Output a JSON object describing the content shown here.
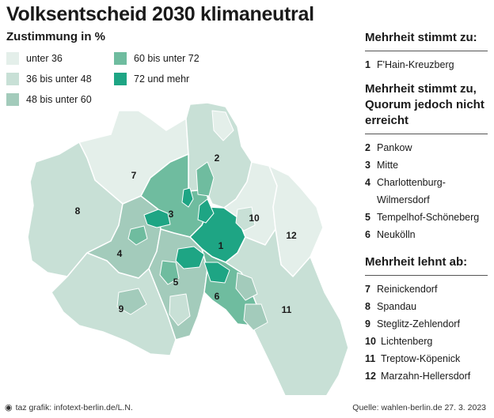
{
  "title": "Volksentscheid 2030 klimaneutral",
  "legend": {
    "title": "Zustimmung in %",
    "items": [
      {
        "label": "unter 36",
        "color": "#e4efea"
      },
      {
        "label": "36  bis unter 48",
        "color": "#c8e0d6"
      },
      {
        "label": "48  bis unter 60",
        "color": "#a3cbbb"
      },
      {
        "label": "60 bis unter 72",
        "color": "#6fbc9f"
      },
      {
        "label": "72 und mehr",
        "color": "#1ea584"
      }
    ]
  },
  "map": {
    "districts": [
      {
        "number": "1",
        "name": "F'Hain-Kreuzberg"
      },
      {
        "number": "2",
        "name": "Pankow"
      },
      {
        "number": "3",
        "name": "Mitte"
      },
      {
        "number": "4",
        "name": "Charlottenburg-Wilmersdorf"
      },
      {
        "number": "5",
        "name": "Tempelhof-Schöneberg"
      },
      {
        "number": "6",
        "name": "Neukölln"
      },
      {
        "number": "7",
        "name": "Reinickendorf"
      },
      {
        "number": "8",
        "name": "Spandau"
      },
      {
        "number": "9",
        "name": "Steglitz-Zehlendorf"
      },
      {
        "number": "10",
        "name": "Lichtenberg"
      },
      {
        "number": "11",
        "name": "Treptow-Köpenick"
      },
      {
        "number": "12",
        "name": "Marzahn-Hellersdorf"
      }
    ]
  },
  "sections": {
    "majority_yes": {
      "heading": "Mehrheit stimmt zu:",
      "entries": [
        {
          "number": "1",
          "name": "F'Hain-Kreuzberg"
        }
      ]
    },
    "majority_no_quorum": {
      "heading": "Mehrheit stimmt zu, Quorum jedoch nicht erreicht",
      "entries": [
        {
          "number": "2",
          "name": "Pankow"
        },
        {
          "number": "3",
          "name": "Mitte"
        },
        {
          "number": "4",
          "name": "Charlottenburg-Wilmersdorf"
        },
        {
          "number": "5",
          "name": "Tempelhof-Schöneberg"
        },
        {
          "number": "6",
          "name": "Neukölln"
        }
      ]
    },
    "majority_rejects": {
      "heading": "Mehrheit lehnt ab:",
      "entries": [
        {
          "number": "7",
          "name": "Reinickendorf"
        },
        {
          "number": "8",
          "name": "Spandau"
        },
        {
          "number": "9",
          "name": "Steglitz-Zehlendorf"
        },
        {
          "number": "10",
          "name": "Lichtenberg"
        },
        {
          "number": "11",
          "name": "Treptow-Köpenick"
        },
        {
          "number": "12",
          "name": "Marzahn-Hellersdorf"
        }
      ]
    }
  },
  "footer": {
    "credit": "taz grafik: infotext-berlin.de/L.N.",
    "source": "Quelle: wahlen-berlin.de 27. 3. 2023",
    "icon": "taz-paw-icon"
  }
}
